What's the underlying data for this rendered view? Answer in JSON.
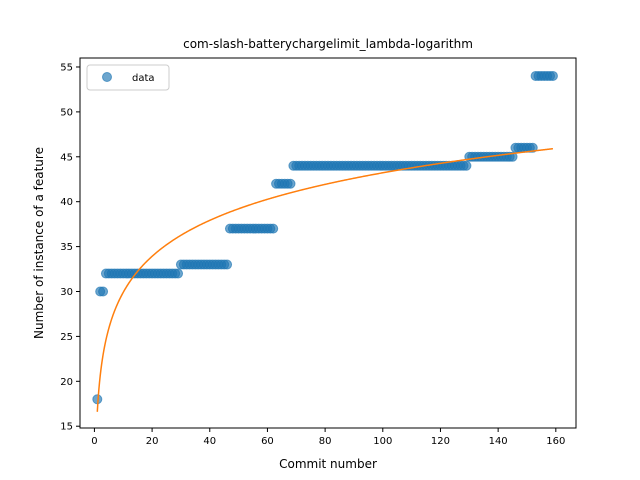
{
  "chart_data": {
    "type": "scatter",
    "title": "com-slash-batterychargelimit_lambda-logarithm",
    "xlabel": "Commit number",
    "ylabel": "Number of instance of a feature",
    "xlim": [
      -5,
      167
    ],
    "ylim": [
      14.8,
      56
    ],
    "xticks": [
      0,
      20,
      40,
      60,
      80,
      100,
      120,
      140,
      160
    ],
    "yticks": [
      15,
      20,
      25,
      30,
      35,
      40,
      45,
      50,
      55
    ],
    "grid": false,
    "legend": {
      "entries": [
        "data"
      ],
      "placement": "upper-left"
    },
    "colors": {
      "data": "#1f77b4",
      "fit": "#ff7f0e"
    },
    "series": [
      {
        "name": "data",
        "kind": "scatter",
        "runs": [
          {
            "x_start": 1,
            "x_end": 1,
            "y": 18
          },
          {
            "x_start": 2,
            "x_end": 3,
            "y": 30
          },
          {
            "x_start": 4,
            "x_end": 29,
            "y": 32
          },
          {
            "x_start": 30,
            "x_end": 46,
            "y": 33
          },
          {
            "x_start": 47,
            "x_end": 62,
            "y": 37
          },
          {
            "x_start": 63,
            "x_end": 68,
            "y": 42
          },
          {
            "x_start": 69,
            "x_end": 129,
            "y": 44
          },
          {
            "x_start": 130,
            "x_end": 145,
            "y": 45
          },
          {
            "x_start": 146,
            "x_end": 152,
            "y": 46
          },
          {
            "x_start": 153,
            "x_end": 159,
            "y": 54
          }
        ]
      },
      {
        "kind": "line",
        "equation": "y = 16.6 + 5.78 * ln(x)",
        "x_range": [
          1,
          159
        ]
      }
    ]
  }
}
